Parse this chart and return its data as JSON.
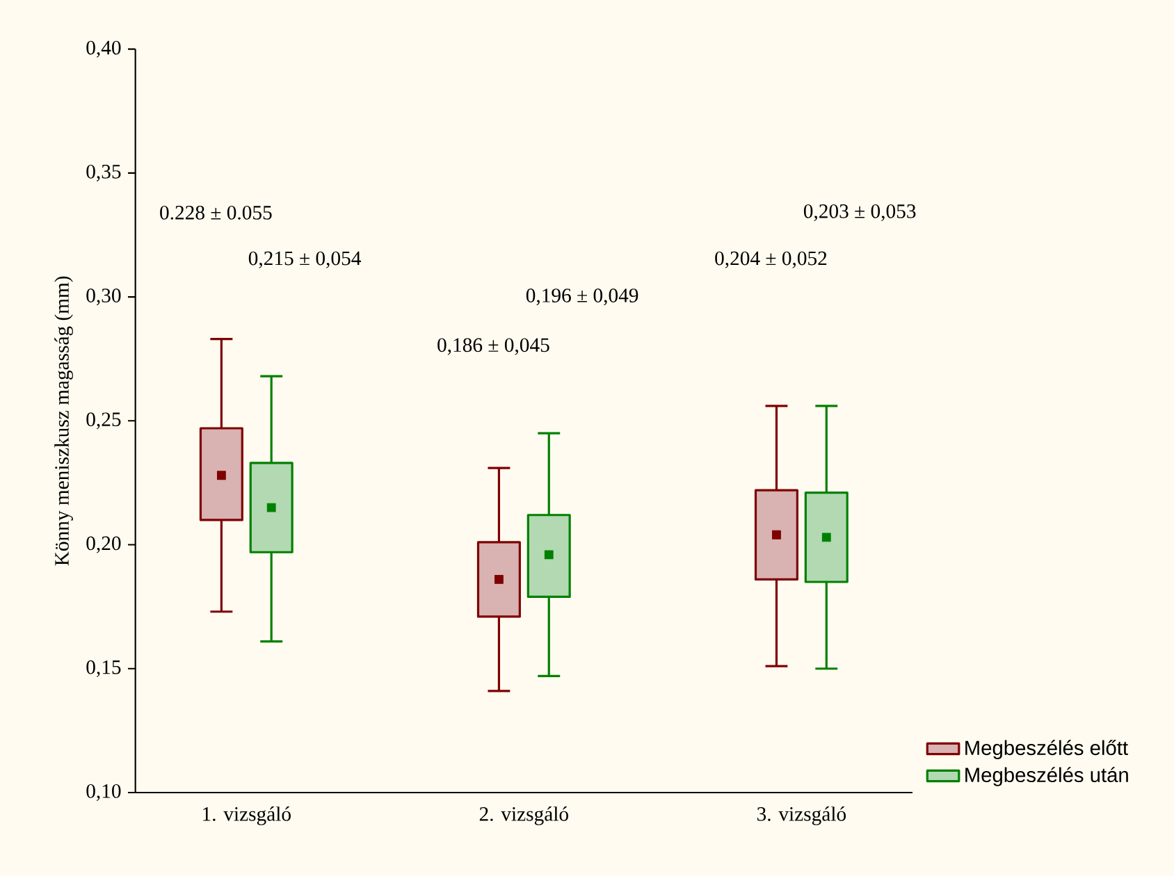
{
  "chart_data": {
    "type": "box",
    "ylabel": "Könny meniszkusz magasság (mm)",
    "categories": [
      "1. vizsgáló",
      "2. vizsgáló",
      "3. vizsgáló"
    ],
    "ylim": [
      0.1,
      0.4
    ],
    "yticks": [
      {
        "value": 0.1,
        "label": "0,10"
      },
      {
        "value": 0.15,
        "label": "0,15"
      },
      {
        "value": 0.2,
        "label": "0,20"
      },
      {
        "value": 0.25,
        "label": "0,25"
      },
      {
        "value": 0.3,
        "label": "0,30"
      },
      {
        "value": 0.35,
        "label": "0,35"
      },
      {
        "value": 0.4,
        "label": "0,40"
      }
    ],
    "series": [
      {
        "name": "Megbeszélés előtt",
        "color": "#7f0000",
        "boxes": [
          {
            "low": 0.173,
            "q1": 0.21,
            "median": 0.228,
            "q3": 0.247,
            "high": 0.283
          },
          {
            "low": 0.141,
            "q1": 0.171,
            "median": 0.186,
            "q3": 0.201,
            "high": 0.231
          },
          {
            "low": 0.151,
            "q1": 0.186,
            "median": 0.204,
            "q3": 0.222,
            "high": 0.256
          }
        ]
      },
      {
        "name": "Megbeszélés után",
        "color": "#008000",
        "boxes": [
          {
            "low": 0.161,
            "q1": 0.197,
            "median": 0.215,
            "q3": 0.233,
            "high": 0.268
          },
          {
            "low": 0.147,
            "q1": 0.179,
            "median": 0.196,
            "q3": 0.212,
            "high": 0.245
          },
          {
            "low": 0.15,
            "q1": 0.185,
            "median": 0.203,
            "q3": 0.221,
            "high": 0.256
          }
        ]
      }
    ],
    "annotations": [
      "0.228 ± 0.055",
      "0,215 ± 0,054",
      "0,186 ± 0,045",
      "0,196 ± 0,049",
      "0,204 ± 0,052",
      "0,203 ± 0,053"
    ],
    "marker": "square",
    "grid": false,
    "legend": "bottom right"
  }
}
